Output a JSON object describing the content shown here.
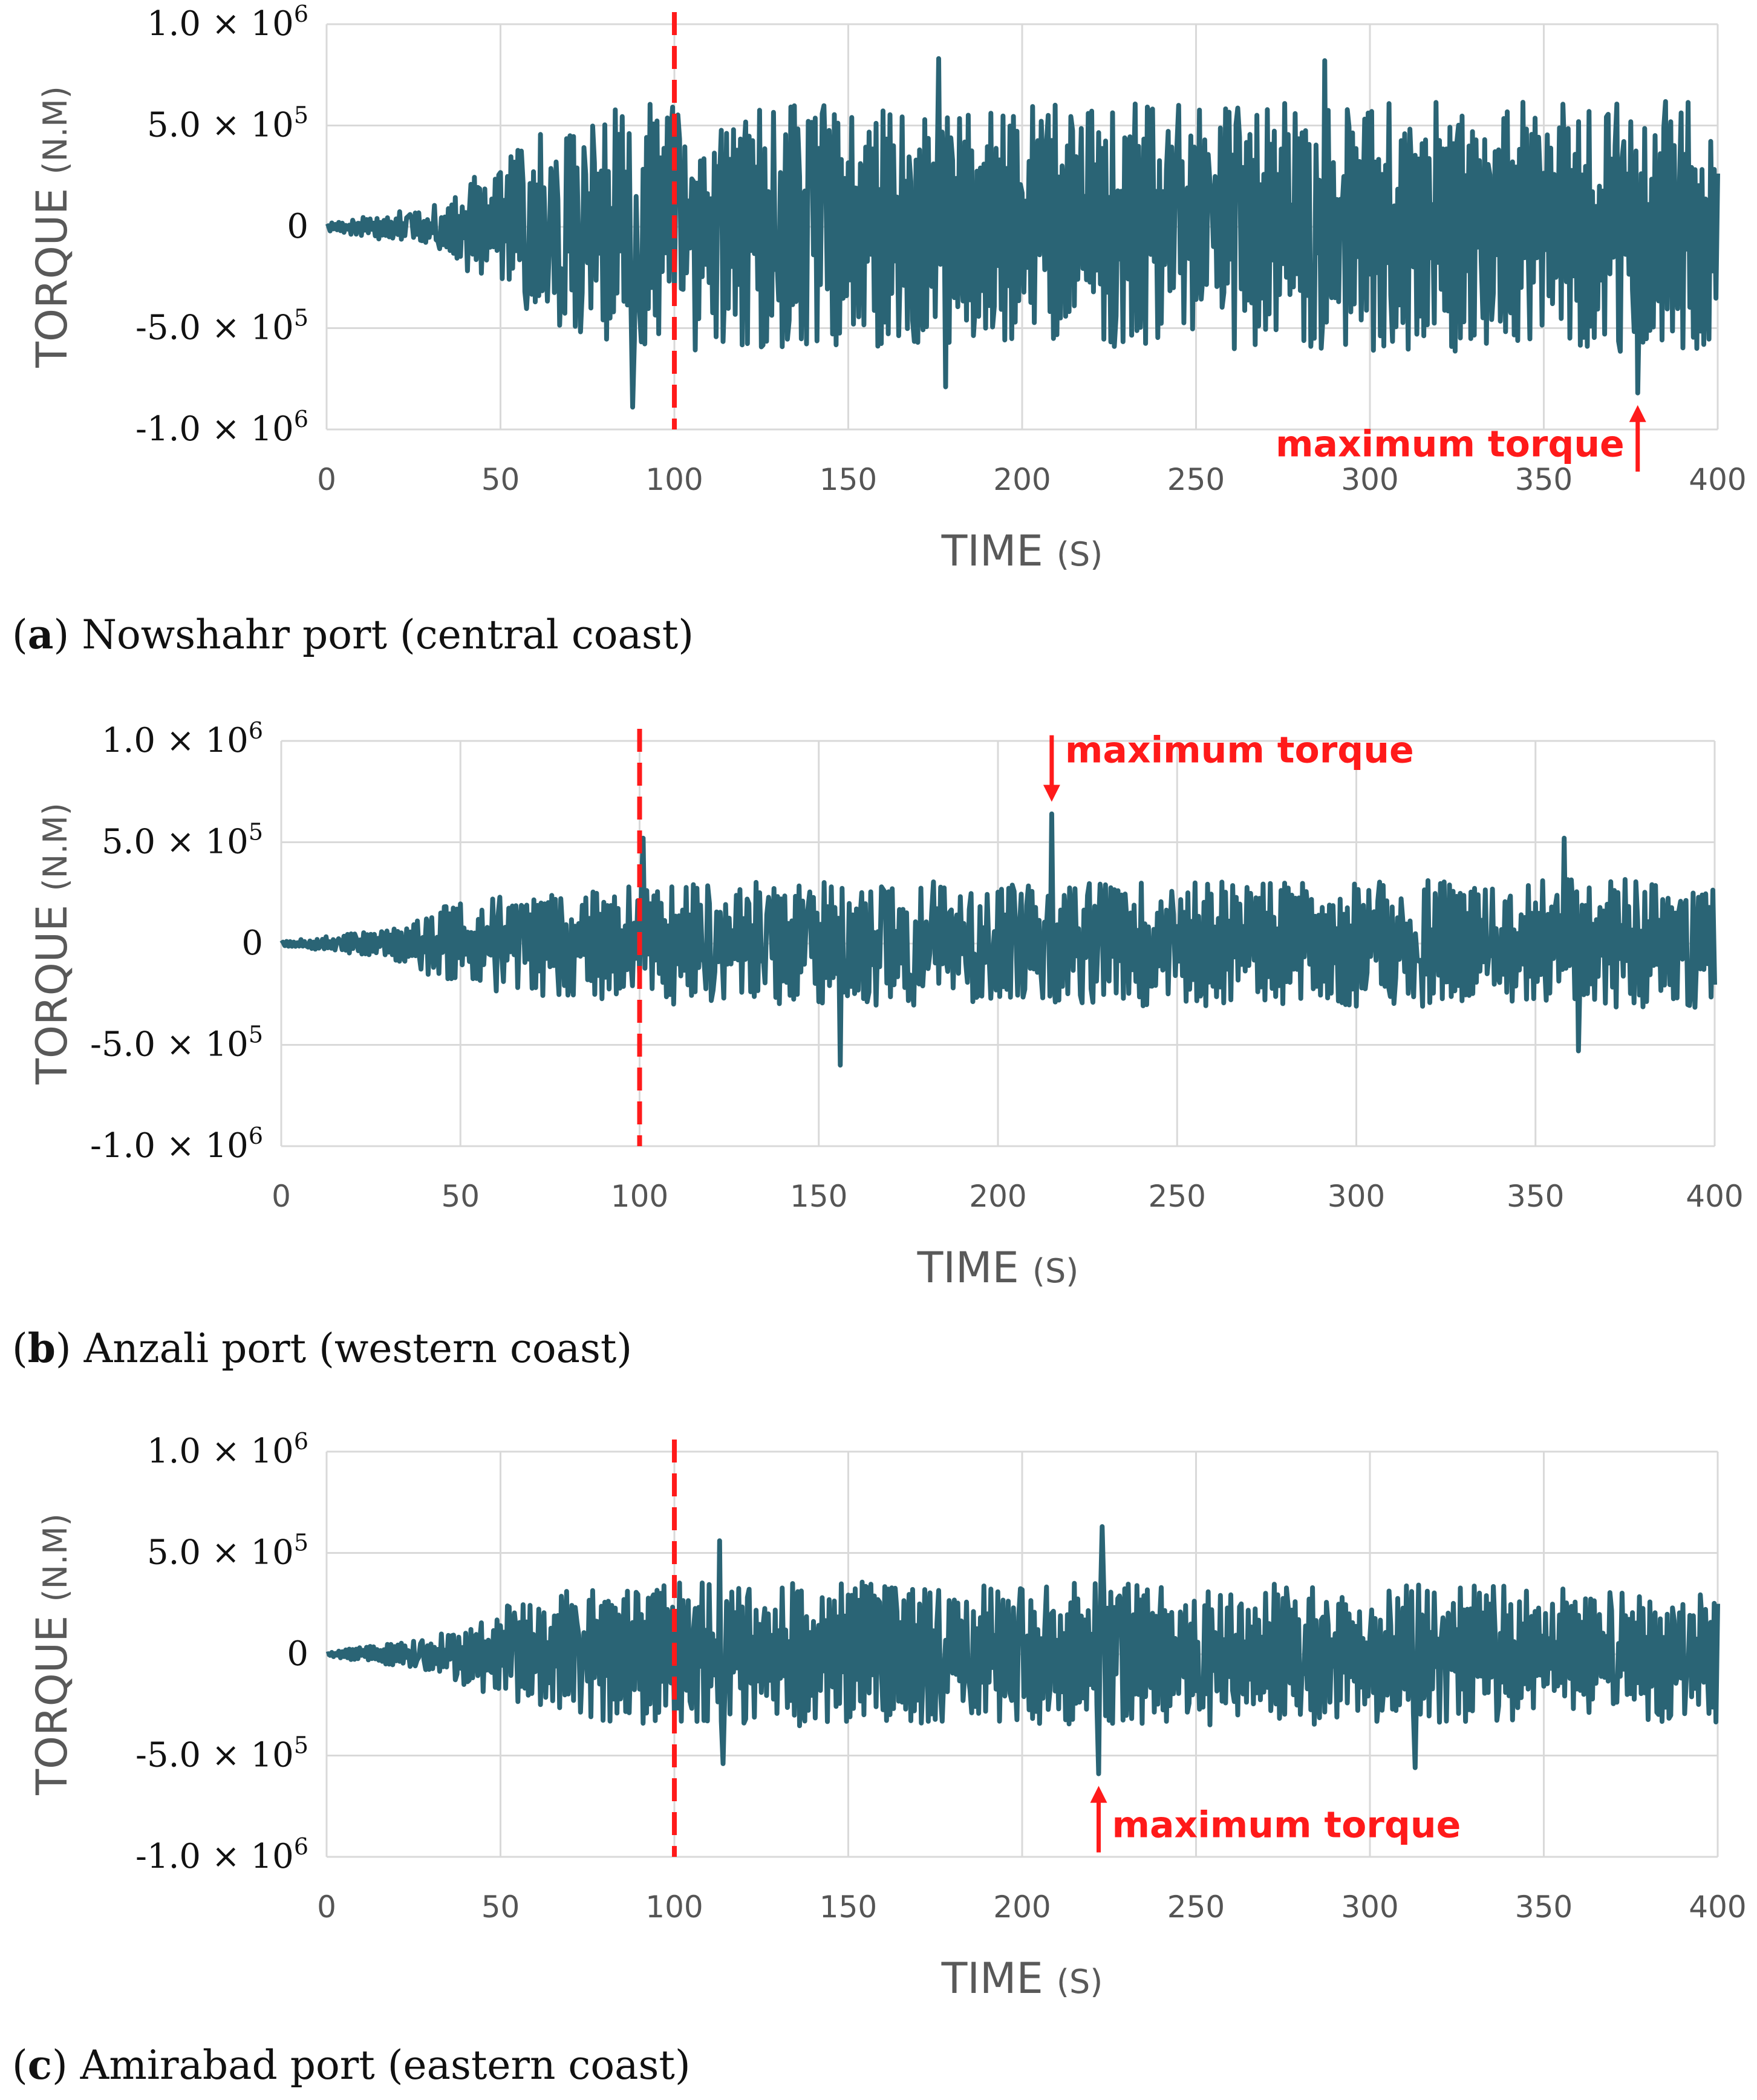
{
  "chart_data": [
    {
      "type": "line",
      "caption_label": "a",
      "caption_text": "Nowshahr port (central coast)",
      "xlabel": "TIME",
      "xlabel_unit": "(S)",
      "ylabel": "TORQUE",
      "ylabel_unit": "(N.M)",
      "xlim": [
        0,
        400
      ],
      "ylim": [
        -1000000,
        1000000
      ],
      "x_ticks": [
        "0",
        "50",
        "100",
        "150",
        "200",
        "250",
        "300",
        "350",
        "400"
      ],
      "y_ticks": [
        {
          "value": 1000000,
          "mantissa": "1.0",
          "exp": "6"
        },
        {
          "value": 500000,
          "mantissa": "5.0",
          "exp": "5"
        },
        {
          "value": 0,
          "mantissa": "0",
          "exp": ""
        },
        {
          "value": -500000,
          "mantissa": "-5.0",
          "exp": "5"
        },
        {
          "value": -1000000,
          "mantissa": "-1.0",
          "exp": "6"
        }
      ],
      "vertical_marker_x": 100,
      "annotation": {
        "text": "maximum torque",
        "x": 377,
        "y": -820000,
        "arrow": "up",
        "text_side": "left"
      },
      "series": [
        {
          "name": "Torque",
          "color": "#2a6475",
          "seed": 11,
          "envelope": [
            [
              0,
              0.02
            ],
            [
              30,
              0.1
            ],
            [
              60,
              0.45
            ],
            [
              90,
              0.62
            ],
            [
              120,
              0.6
            ],
            [
              400,
              0.62
            ]
          ],
          "peaks": [
            [
              88,
              -890000
            ],
            [
              176,
              830000
            ],
            [
              178,
              -790000
            ],
            [
              287,
              820000
            ],
            [
              377,
              -820000
            ]
          ]
        }
      ]
    },
    {
      "type": "line",
      "caption_label": "b",
      "caption_text": "Anzali port (western coast)",
      "xlabel": "TIME",
      "xlabel_unit": "(S)",
      "ylabel": "TORQUE",
      "ylabel_unit": "(N.M)",
      "xlim": [
        0,
        400
      ],
      "ylim": [
        -1000000,
        1000000
      ],
      "x_ticks": [
        "0",
        "50",
        "100",
        "150",
        "200",
        "250",
        "300",
        "350",
        "400"
      ],
      "y_ticks": [
        {
          "value": 1000000,
          "mantissa": "1.0",
          "exp": "6"
        },
        {
          "value": 500000,
          "mantissa": "5.0",
          "exp": "5"
        },
        {
          "value": 0,
          "mantissa": "0",
          "exp": ""
        },
        {
          "value": -500000,
          "mantissa": "-5.0",
          "exp": "5"
        },
        {
          "value": -1000000,
          "mantissa": "-1.0",
          "exp": "6"
        }
      ],
      "vertical_marker_x": 100,
      "annotation": {
        "text": "maximum torque",
        "x": 215,
        "y": 640000,
        "arrow": "down",
        "text_side": "right"
      },
      "series": [
        {
          "name": "Torque",
          "color": "#2a6475",
          "seed": 23,
          "envelope": [
            [
              0,
              0.01
            ],
            [
              30,
              0.07
            ],
            [
              50,
              0.22
            ],
            [
              100,
              0.3
            ],
            [
              400,
              0.32
            ]
          ],
          "peaks": [
            [
              101,
              520000
            ],
            [
              156,
              -600000
            ],
            [
              215,
              640000
            ],
            [
              358,
              520000
            ],
            [
              362,
              -530000
            ]
          ]
        }
      ]
    },
    {
      "type": "line",
      "caption_label": "c",
      "caption_text": "Amirabad port (eastern coast)",
      "xlabel": "TIME",
      "xlabel_unit": "(S)",
      "ylabel": "TORQUE",
      "ylabel_unit": "(N.M)",
      "xlim": [
        0,
        400
      ],
      "ylim": [
        -1000000,
        1000000
      ],
      "x_ticks": [
        "0",
        "50",
        "100",
        "150",
        "200",
        "250",
        "300",
        "350",
        "400"
      ],
      "y_ticks": [
        {
          "value": 1000000,
          "mantissa": "1.0",
          "exp": "6"
        },
        {
          "value": 500000,
          "mantissa": "5.0",
          "exp": "5"
        },
        {
          "value": 0,
          "mantissa": "0",
          "exp": ""
        },
        {
          "value": -500000,
          "mantissa": "-5.0",
          "exp": "5"
        },
        {
          "value": -1000000,
          "mantissa": "-1.0",
          "exp": "6"
        }
      ],
      "vertical_marker_x": 100,
      "annotation": {
        "text": "maximum torque",
        "x": 222,
        "y": -590000,
        "arrow": "up",
        "text_side": "right"
      },
      "series": [
        {
          "name": "Torque",
          "color": "#2a6475",
          "seed": 37,
          "envelope": [
            [
              0,
              0.01
            ],
            [
              30,
              0.08
            ],
            [
              60,
              0.3
            ],
            [
              100,
              0.36
            ],
            [
              400,
              0.34
            ]
          ],
          "peaks": [
            [
              113,
              560000
            ],
            [
              114,
              -540000
            ],
            [
              222,
              -590000
            ],
            [
              223,
              630000
            ],
            [
              313,
              -560000
            ]
          ]
        }
      ]
    }
  ]
}
